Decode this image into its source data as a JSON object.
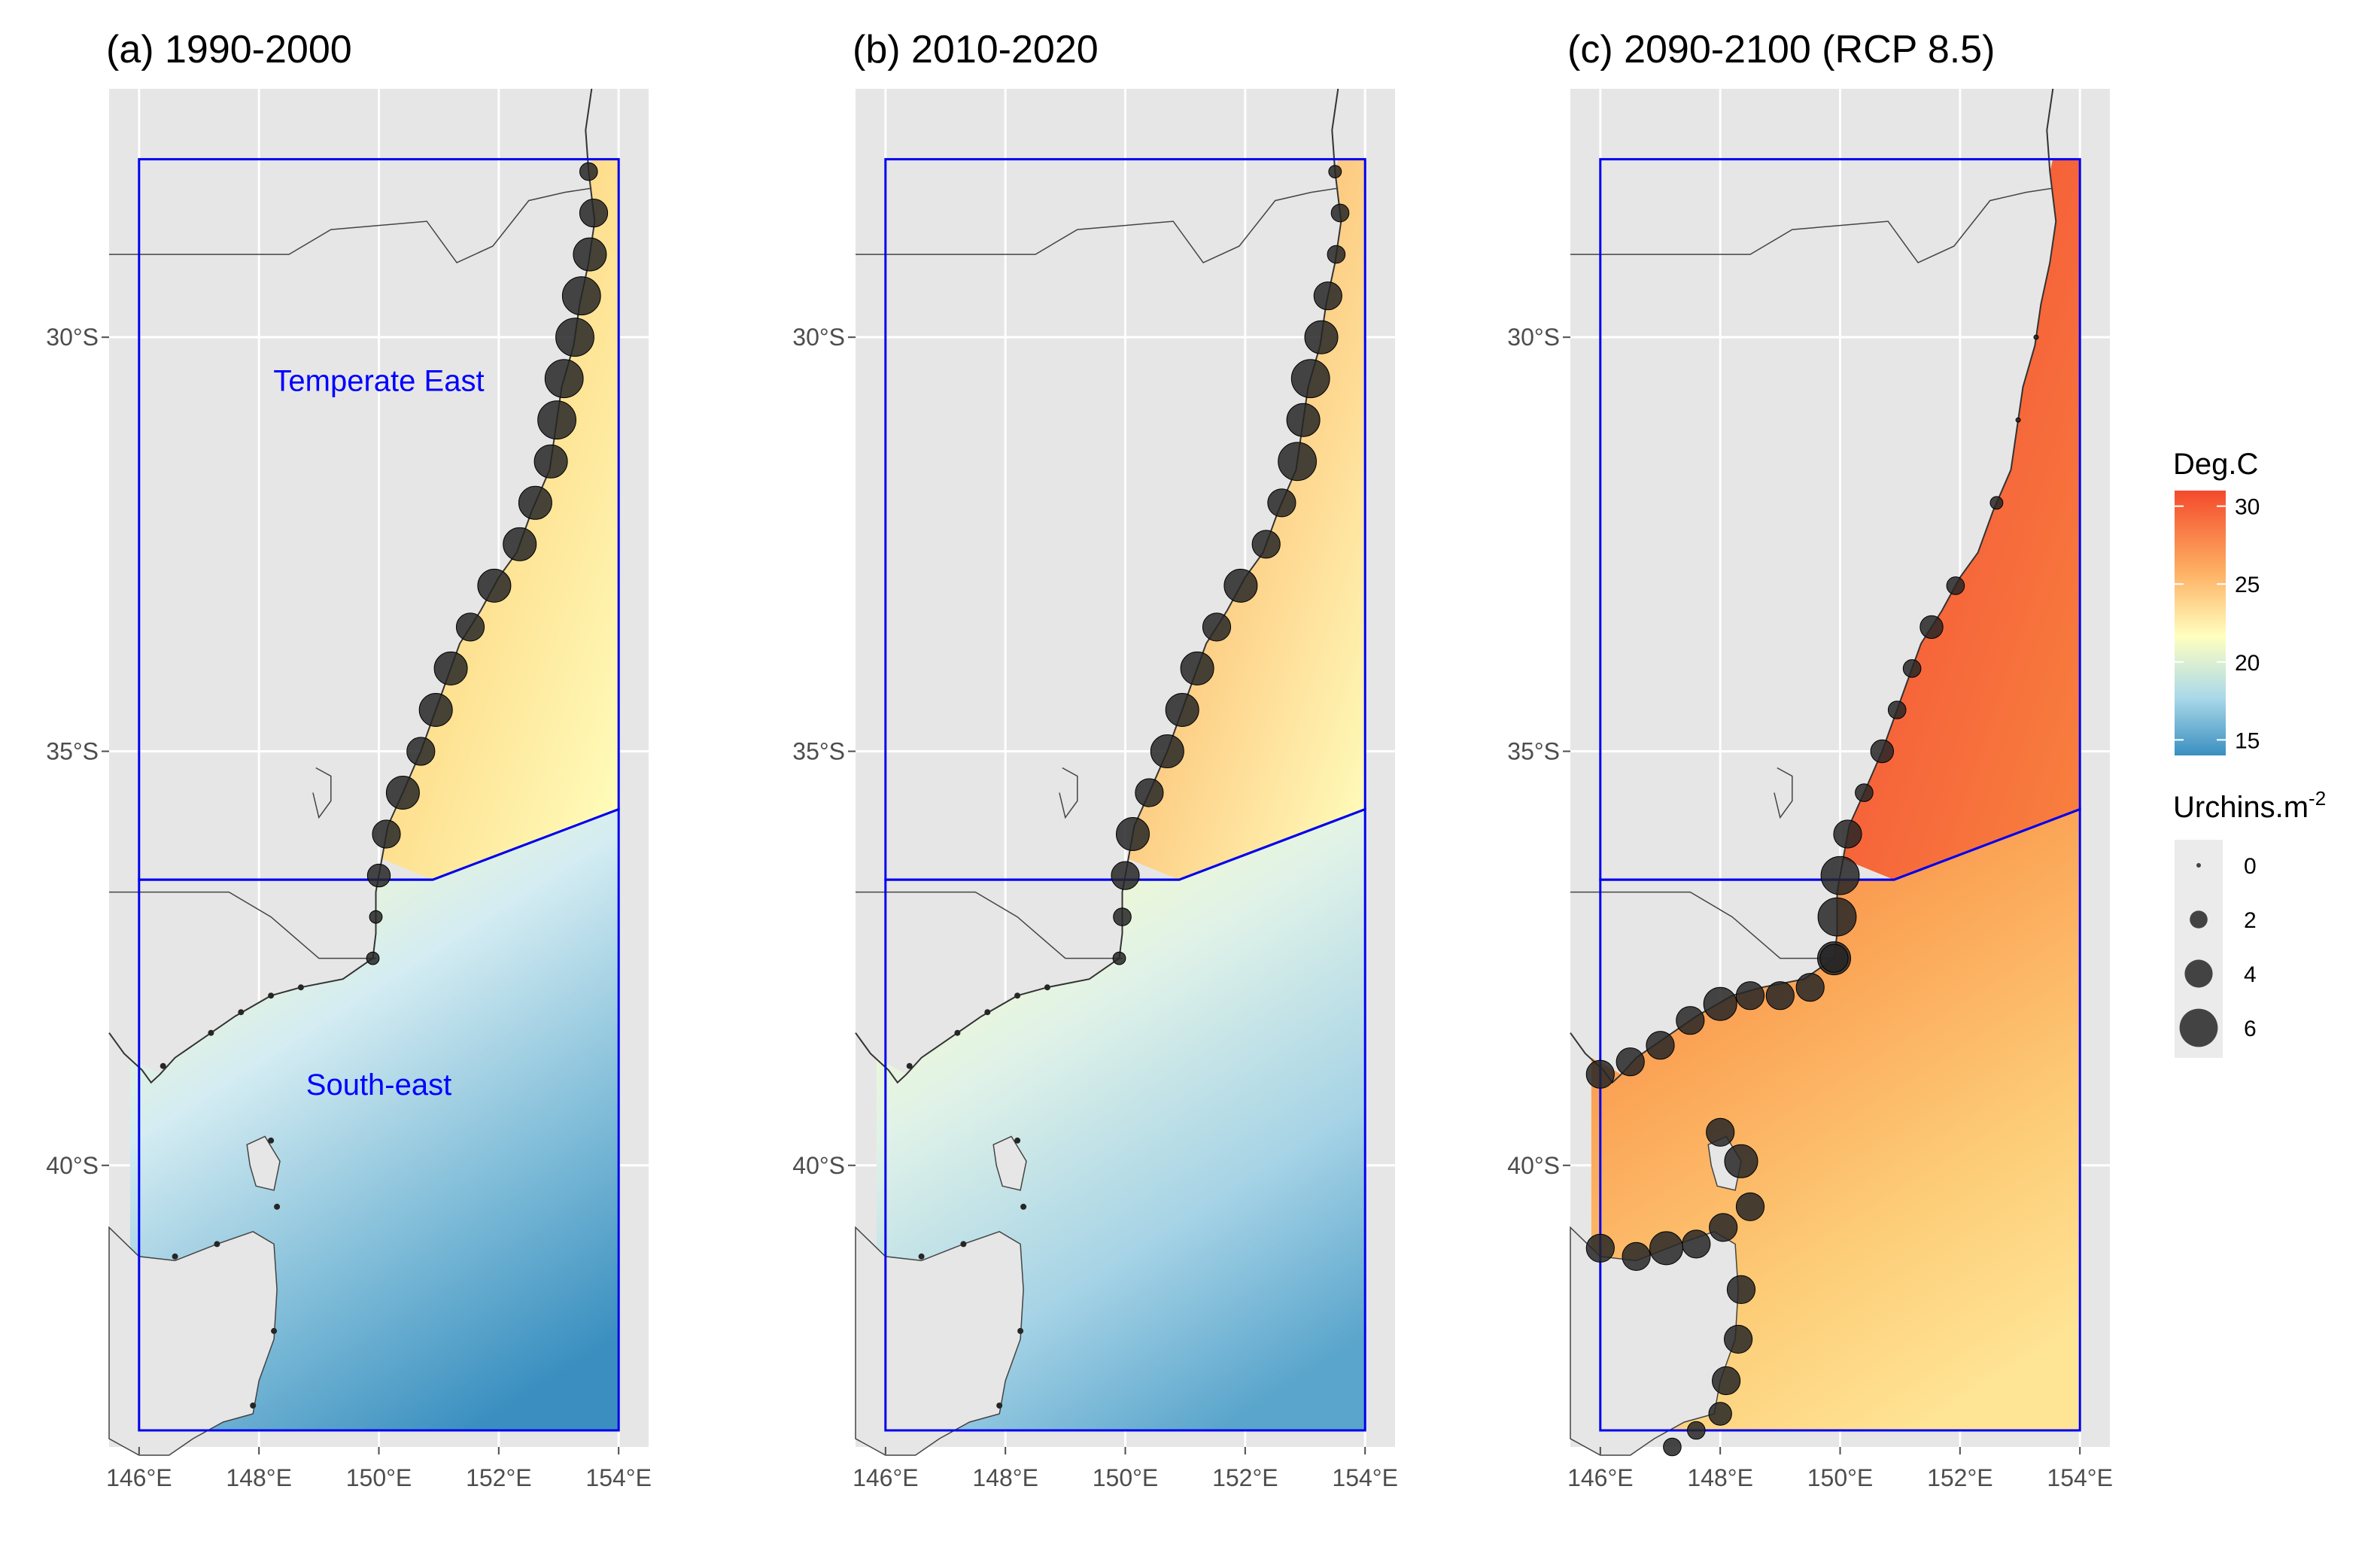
{
  "panels": [
    {
      "title": "(a) 1990-2000",
      "palette": "past",
      "regions": {
        "north": "Temperate East",
        "south": "South-east"
      }
    },
    {
      "title": "(b) 2010-2020",
      "palette": "mid"
    },
    {
      "title": "(c) 2090-2100 (RCP 8.5)",
      "palette": "future"
    }
  ],
  "axes": {
    "x_ticks": [
      "146°E",
      "148°E",
      "150°E",
      "152°E",
      "154°E"
    ],
    "y_ticks": [
      "30°S",
      "35°S",
      "40°S"
    ]
  },
  "legend": {
    "temp_title": "Deg.C",
    "temp_ticks": [
      "30",
      "25",
      "20",
      "15"
    ],
    "urchin_title": "Urchins.m",
    "urchin_title_sup": "-2",
    "urchin_levels": [
      "0",
      "2",
      "4",
      "6"
    ]
  },
  "colors": {
    "panel_bg": "#e6e6e6",
    "land": "#e6e6e6",
    "region_box": "#0000ee",
    "region_label": "#0000ff",
    "point_fill": "#262626",
    "temp_high": "#f44a2c",
    "temp_mid": "#ffffbf",
    "temp_low": "#3a8fc0"
  },
  "chart_data": {
    "type": "map",
    "subtype": "sea-surface-temperature heatmap with urchin-density bubbles",
    "x_range_deg_E": [
      145.5,
      154.5
    ],
    "y_range_deg_S": [
      27,
      43.4
    ],
    "temperature_scale": {
      "min": 14,
      "max": 31,
      "ticks": [
        30,
        25,
        20,
        15
      ]
    },
    "urchin_scale": {
      "levels": [
        0,
        2,
        4,
        6
      ]
    },
    "region_boundary_latitude": 36.5,
    "regions": [
      "Temperate East",
      "South-east"
    ],
    "periods": [
      {
        "label": "(a) 1990-2000",
        "urchin_density_east_coast": [
          {
            "lat": 28.0,
            "value": 2
          },
          {
            "lat": 28.5,
            "value": 4
          },
          {
            "lat": 29.0,
            "value": 5
          },
          {
            "lat": 29.5,
            "value": 6
          },
          {
            "lat": 30.0,
            "value": 6
          },
          {
            "lat": 30.5,
            "value": 6
          },
          {
            "lat": 31.0,
            "value": 6
          },
          {
            "lat": 31.5,
            "value": 5
          },
          {
            "lat": 32.0,
            "value": 5
          },
          {
            "lat": 32.5,
            "value": 5
          },
          {
            "lat": 33.0,
            "value": 5
          },
          {
            "lat": 33.5,
            "value": 4
          },
          {
            "lat": 34.0,
            "value": 5
          },
          {
            "lat": 34.5,
            "value": 5
          },
          {
            "lat": 35.0,
            "value": 4
          },
          {
            "lat": 35.5,
            "value": 5
          },
          {
            "lat": 36.0,
            "value": 4
          },
          {
            "lat": 36.5,
            "value": 3
          },
          {
            "lat": 37.0,
            "value": 1
          },
          {
            "lat": 37.5,
            "value": 1
          }
        ]
      },
      {
        "label": "(b) 2010-2020",
        "urchin_density_east_coast": [
          {
            "lat": 28.0,
            "value": 1
          },
          {
            "lat": 28.5,
            "value": 2
          },
          {
            "lat": 29.0,
            "value": 2
          },
          {
            "lat": 29.5,
            "value": 4
          },
          {
            "lat": 30.0,
            "value": 5
          },
          {
            "lat": 30.5,
            "value": 6
          },
          {
            "lat": 31.0,
            "value": 5
          },
          {
            "lat": 31.5,
            "value": 6
          },
          {
            "lat": 32.0,
            "value": 4
          },
          {
            "lat": 32.5,
            "value": 4
          },
          {
            "lat": 33.0,
            "value": 5
          },
          {
            "lat": 33.5,
            "value": 4
          },
          {
            "lat": 34.0,
            "value": 5
          },
          {
            "lat": 34.5,
            "value": 5
          },
          {
            "lat": 35.0,
            "value": 5
          },
          {
            "lat": 35.5,
            "value": 4
          },
          {
            "lat": 36.0,
            "value": 5
          },
          {
            "lat": 36.5,
            "value": 4
          },
          {
            "lat": 37.0,
            "value": 2
          },
          {
            "lat": 37.5,
            "value": 1
          }
        ]
      },
      {
        "label": "(c) 2090-2100 (RCP 8.5)",
        "urchin_density_east_coast": [
          {
            "lat": 30.0,
            "value": 0
          },
          {
            "lat": 31.0,
            "value": 0
          },
          {
            "lat": 32.0,
            "value": 1
          },
          {
            "lat": 33.0,
            "value": 2
          },
          {
            "lat": 33.5,
            "value": 3
          },
          {
            "lat": 34.0,
            "value": 2
          },
          {
            "lat": 34.5,
            "value": 2
          },
          {
            "lat": 35.0,
            "value": 3
          },
          {
            "lat": 35.5,
            "value": 2
          },
          {
            "lat": 36.0,
            "value": 4
          },
          {
            "lat": 36.5,
            "value": 6
          },
          {
            "lat": 37.0,
            "value": 6
          },
          {
            "lat": 37.5,
            "value": 5
          }
        ]
      }
    ]
  }
}
